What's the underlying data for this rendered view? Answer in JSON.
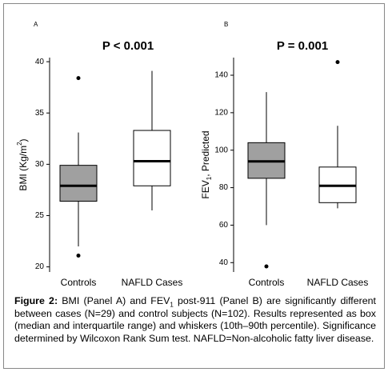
{
  "chart_data": [
    {
      "type": "box",
      "panel": "A",
      "title": "P < 0.001",
      "ylabel": {
        "text": "BMI (Kg/m",
        "sup": "2",
        "after": ")"
      },
      "categories": [
        "Controls",
        "NAFLD Cases"
      ],
      "boxes": [
        {
          "whislo": 22,
          "q1": 26.4,
          "med": 27.9,
          "q3": 29.9,
          "whishi": 33.1,
          "fliers": [
            21.1,
            38.4
          ],
          "color": "#a0a0a0"
        },
        {
          "whislo": 25.5,
          "q1": 27.9,
          "med": 30.3,
          "q3": 33.3,
          "whishi": 39.1,
          "fliers": [],
          "color": "#ffffff"
        }
      ],
      "ylim": [
        19.5,
        40.4
      ],
      "yticks": [
        20,
        25,
        30,
        35,
        40
      ]
    },
    {
      "type": "box",
      "panel": "B",
      "title": "P = 0.001",
      "ylabel": {
        "text": "FEV",
        "sub": "1",
        "after": ", Predicted"
      },
      "categories": [
        "Controls",
        "NAFLD Cases"
      ],
      "boxes": [
        {
          "whislo": 60,
          "q1": 85,
          "med": 94,
          "q3": 104,
          "whishi": 131,
          "fliers": [
            38
          ],
          "color": "#a0a0a0"
        },
        {
          "whislo": 69,
          "q1": 72,
          "med": 81,
          "q3": 91,
          "whishi": 113,
          "fliers": [
            147
          ],
          "color": "#ffffff"
        }
      ],
      "ylim": [
        35,
        149.4
      ],
      "yticks": [
        40,
        60,
        80,
        100,
        120,
        140
      ]
    }
  ],
  "caption": {
    "label": "Figure 2:",
    "parts": [
      "BMI (Panel A) and FEV",
      "1",
      " post-911 (Panel B) are significantly different between cases (N=29) and control subjects (N=102). Results represented as box (median and interquartile range) and whiskers (10th–90th percentile). Significance determined by Wilcoxon Rank Sum test. NAFLD=Non-alcoholic fatty liver disease."
    ]
  }
}
